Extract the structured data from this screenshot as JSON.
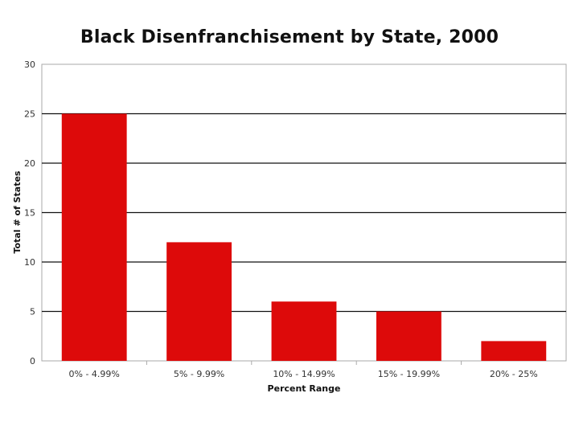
{
  "chart_data": {
    "type": "bar",
    "title": "Black Disenfranchisement by State, 2000",
    "xlabel": "Percent Range",
    "ylabel": "Total # of States",
    "categories": [
      "0% - 4.99%",
      "5% - 9.99%",
      "10% - 14.99%",
      "15% - 19.99%",
      "20% - 25%"
    ],
    "values": [
      25,
      12,
      6,
      5,
      2
    ],
    "ylim": [
      0,
      30
    ],
    "yticks": [
      0,
      5,
      10,
      15,
      20,
      25,
      30
    ],
    "grid": true,
    "legend": "none",
    "bar_color": "#dd0a0a"
  }
}
